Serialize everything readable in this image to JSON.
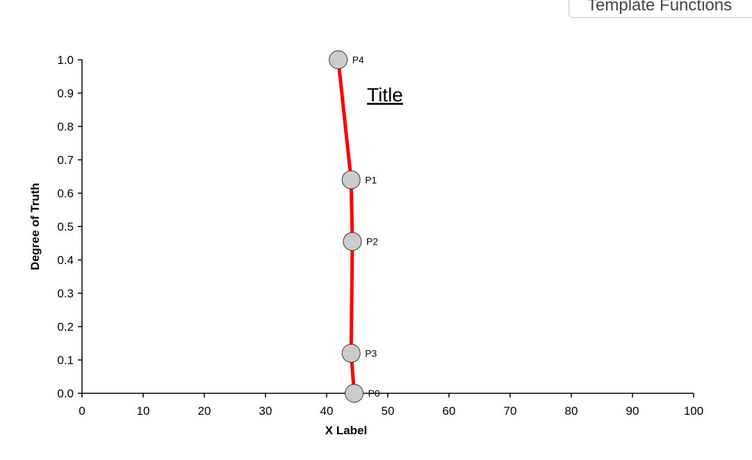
{
  "toolbar": {
    "template_button_label": "Template Functions"
  },
  "chart_data": {
    "type": "line",
    "title": "Title",
    "xlabel": "X Label",
    "ylabel": "Degree of Truth",
    "xlim": [
      0,
      100
    ],
    "ylim": [
      0,
      1
    ],
    "x_ticks": [
      "0",
      "10",
      "20",
      "30",
      "40",
      "50",
      "60",
      "70",
      "80",
      "90",
      "100"
    ],
    "y_ticks": [
      "0.0",
      "0.1",
      "0.2",
      "0.3",
      "0.4",
      "0.5",
      "0.6",
      "0.7",
      "0.8",
      "0.9",
      "1.0"
    ],
    "line_color": "#ff0000",
    "point_fill": "#cccccc",
    "points": [
      {
        "label": "P4",
        "x": 41.9,
        "y": 1.0
      },
      {
        "label": "P1",
        "x": 44.0,
        "y": 0.64
      },
      {
        "label": "P2",
        "x": 44.2,
        "y": 0.455
      },
      {
        "label": "P3",
        "x": 44.0,
        "y": 0.12
      },
      {
        "label": "P0",
        "x": 44.5,
        "y": 0.0
      }
    ]
  }
}
